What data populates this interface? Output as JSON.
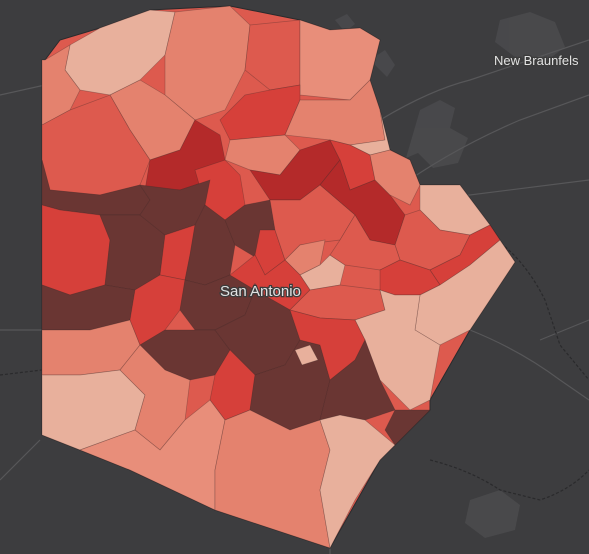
{
  "map": {
    "basemap_color": "#3d3d3f",
    "labels": {
      "new_braunfels": "New Braunfels",
      "san_antonio": "San Antonio"
    },
    "choropleth_palette": {
      "lightest": "#e8b09c",
      "light": "#e4826e",
      "medium": "#dd5a4e",
      "strong": "#d6403a",
      "dark": "#b42a2a",
      "darkest": "#6a3633"
    }
  }
}
